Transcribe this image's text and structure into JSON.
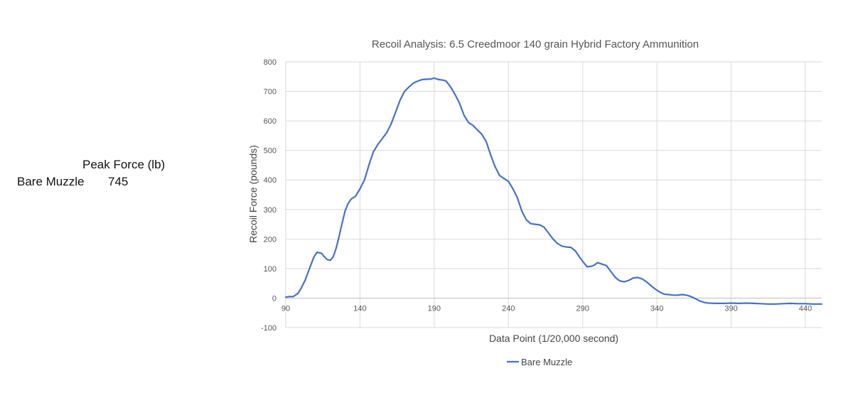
{
  "summary": {
    "header": "Peak Force (lb)",
    "row_label": "Bare Muzzle",
    "row_value": "745"
  },
  "chart_data": {
    "type": "line",
    "title": "Recoil Analysis: 6.5 Creedmoor 140 grain Hybrid Factory Ammunition",
    "xlabel": "Data Point (1/20,000 second)",
    "ylabel": "Recoil Force (pounds)",
    "xlim": [
      90,
      451
    ],
    "ylim": [
      -100,
      800
    ],
    "x_ticks": [
      90,
      140,
      190,
      240,
      290,
      340,
      390,
      440
    ],
    "y_ticks": [
      -100,
      0,
      100,
      200,
      300,
      400,
      500,
      600,
      700,
      800
    ],
    "grid": true,
    "legend_position": "bottom",
    "series": [
      {
        "name": "Bare Muzzle",
        "color": "#4472C4",
        "points": [
          [
            90,
            3
          ],
          [
            92,
            5
          ],
          [
            95,
            5
          ],
          [
            98,
            15
          ],
          [
            100,
            30
          ],
          [
            103,
            60
          ],
          [
            106,
            100
          ],
          [
            109,
            140
          ],
          [
            111,
            155
          ],
          [
            114,
            152
          ],
          [
            116,
            140
          ],
          [
            118,
            130
          ],
          [
            120,
            128
          ],
          [
            122,
            140
          ],
          [
            124,
            170
          ],
          [
            126,
            210
          ],
          [
            128,
            255
          ],
          [
            130,
            295
          ],
          [
            132,
            320
          ],
          [
            134,
            335
          ],
          [
            137,
            345
          ],
          [
            140,
            370
          ],
          [
            143,
            400
          ],
          [
            146,
            450
          ],
          [
            149,
            495
          ],
          [
            152,
            520
          ],
          [
            155,
            540
          ],
          [
            158,
            560
          ],
          [
            161,
            590
          ],
          [
            164,
            630
          ],
          [
            167,
            670
          ],
          [
            170,
            700
          ],
          [
            173,
            715
          ],
          [
            176,
            728
          ],
          [
            179,
            735
          ],
          [
            182,
            740
          ],
          [
            185,
            741
          ],
          [
            188,
            742
          ],
          [
            190,
            745
          ],
          [
            193,
            740
          ],
          [
            196,
            738
          ],
          [
            198,
            735
          ],
          [
            201,
            715
          ],
          [
            204,
            690
          ],
          [
            207,
            660
          ],
          [
            210,
            620
          ],
          [
            213,
            595
          ],
          [
            216,
            585
          ],
          [
            219,
            570
          ],
          [
            222,
            555
          ],
          [
            225,
            530
          ],
          [
            228,
            485
          ],
          [
            231,
            445
          ],
          [
            234,
            415
          ],
          [
            237,
            405
          ],
          [
            240,
            395
          ],
          [
            243,
            370
          ],
          [
            246,
            340
          ],
          [
            249,
            295
          ],
          [
            252,
            265
          ],
          [
            255,
            252
          ],
          [
            258,
            250
          ],
          [
            261,
            248
          ],
          [
            264,
            240
          ],
          [
            267,
            220
          ],
          [
            270,
            200
          ],
          [
            273,
            185
          ],
          [
            276,
            176
          ],
          [
            279,
            173
          ],
          [
            282,
            172
          ],
          [
            285,
            160
          ],
          [
            288,
            138
          ],
          [
            291,
            118
          ],
          [
            293,
            106
          ],
          [
            296,
            108
          ],
          [
            298,
            112
          ],
          [
            300,
            120
          ],
          [
            303,
            115
          ],
          [
            306,
            110
          ],
          [
            309,
            90
          ],
          [
            312,
            70
          ],
          [
            315,
            58
          ],
          [
            318,
            55
          ],
          [
            321,
            60
          ],
          [
            324,
            68
          ],
          [
            327,
            70
          ],
          [
            330,
            65
          ],
          [
            333,
            55
          ],
          [
            336,
            42
          ],
          [
            339,
            30
          ],
          [
            342,
            20
          ],
          [
            345,
            13
          ],
          [
            348,
            12
          ],
          [
            351,
            10
          ],
          [
            354,
            10
          ],
          [
            357,
            12
          ],
          [
            360,
            10
          ],
          [
            363,
            5
          ],
          [
            366,
            -2
          ],
          [
            369,
            -10
          ],
          [
            372,
            -15
          ],
          [
            375,
            -17
          ],
          [
            380,
            -18
          ],
          [
            385,
            -18
          ],
          [
            390,
            -17
          ],
          [
            395,
            -18
          ],
          [
            400,
            -17
          ],
          [
            405,
            -18
          ],
          [
            410,
            -19
          ],
          [
            415,
            -20
          ],
          [
            420,
            -20
          ],
          [
            425,
            -19
          ],
          [
            430,
            -18
          ],
          [
            435,
            -19
          ],
          [
            440,
            -19
          ],
          [
            445,
            -20
          ],
          [
            451,
            -20
          ]
        ]
      }
    ]
  }
}
